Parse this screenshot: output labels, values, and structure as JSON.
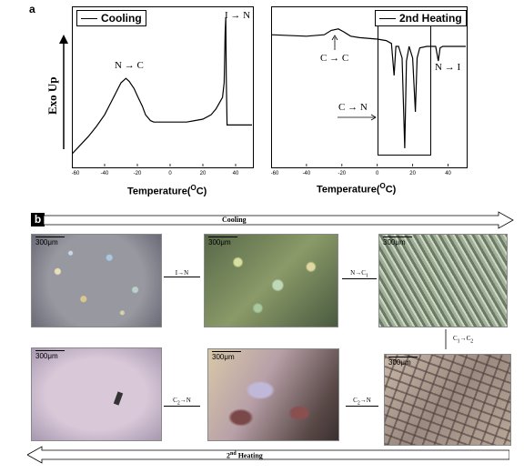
{
  "panel_a_label": "a",
  "panel_b_label": "b",
  "chart_data": [
    {
      "type": "line",
      "legend": "Cooling",
      "ylabel": "Exo Up",
      "xlabel": "Temperature(",
      "xlabel_unit": "O",
      "xlabel_end": "C)",
      "xlim": [
        -60,
        50
      ],
      "xticks": [
        -60,
        -40,
        -20,
        0,
        20,
        40
      ],
      "annotations": [
        "N → C",
        "I → N"
      ],
      "series": [
        {
          "x": [
            -60,
            -55,
            -50,
            -45,
            -40,
            -35,
            -30,
            -27,
            -25,
            -22,
            -20,
            -17,
            -15,
            -12,
            -10,
            -5,
            0,
            5,
            10,
            15,
            20,
            25,
            28,
            30,
            32,
            33,
            33.6,
            34,
            34.3,
            34.8,
            36,
            40,
            45,
            50
          ],
          "y": [
            0.06,
            0.12,
            0.18,
            0.25,
            0.33,
            0.44,
            0.55,
            0.58,
            0.56,
            0.51,
            0.46,
            0.39,
            0.33,
            0.29,
            0.28,
            0.28,
            0.28,
            0.28,
            0.28,
            0.29,
            0.3,
            0.33,
            0.37,
            0.41,
            0.45,
            0.55,
            0.9,
            1.0,
            0.6,
            0.26,
            0.26,
            0.26,
            0.26,
            0.26
          ]
        }
      ]
    },
    {
      "type": "line",
      "legend": "2nd Heating",
      "xlabel": "Temperature(",
      "xlabel_unit": "O",
      "xlabel_end": "C)",
      "xlim": [
        -60,
        50
      ],
      "xticks": [
        -60,
        -40,
        -20,
        0,
        20,
        40
      ],
      "annotations": [
        "C → C",
        "C → N",
        "N → I"
      ],
      "series": [
        {
          "x": [
            -60,
            -40,
            -30,
            -26,
            -22,
            -19,
            -15,
            -10,
            0,
            5,
            8,
            9.5,
            10.5,
            12,
            14,
            15.5,
            16.5,
            18,
            20,
            21.5,
            22.5,
            24,
            28,
            33,
            34.5,
            35.5,
            37,
            40,
            50
          ],
          "y": [
            0.88,
            0.87,
            0.88,
            0.91,
            0.92,
            0.9,
            0.87,
            0.86,
            0.85,
            0.84,
            0.82,
            0.6,
            0.8,
            0.8,
            0.72,
            0.1,
            0.7,
            0.8,
            0.72,
            0.35,
            0.72,
            0.79,
            0.8,
            0.8,
            0.7,
            0.79,
            0.8,
            0.8,
            0.8
          ]
        }
      ]
    }
  ],
  "section_b": {
    "cooling_label": "Cooling",
    "heating_label_pre": "2",
    "heating_label_sup": "nd",
    "heating_label_post": " Heating",
    "scale_label": "300μm",
    "transitions": {
      "i_to_n": "I→N",
      "n_to_c1": "N→C",
      "n_to_c1_sub": "1",
      "c1_to_c2_a": "C",
      "c1_to_c2_a_sub": "1",
      "c1_to_c2_b": "→C",
      "c1_to_c2_b_sub": "2",
      "c2_to_n_a": "C",
      "c2_to_n_a_sub": "2",
      "c2_to_n_b": "→N",
      "c2_to_n_c": "C",
      "c2_to_n_c_sub": "2",
      "c2_to_n_d": "→N"
    }
  }
}
